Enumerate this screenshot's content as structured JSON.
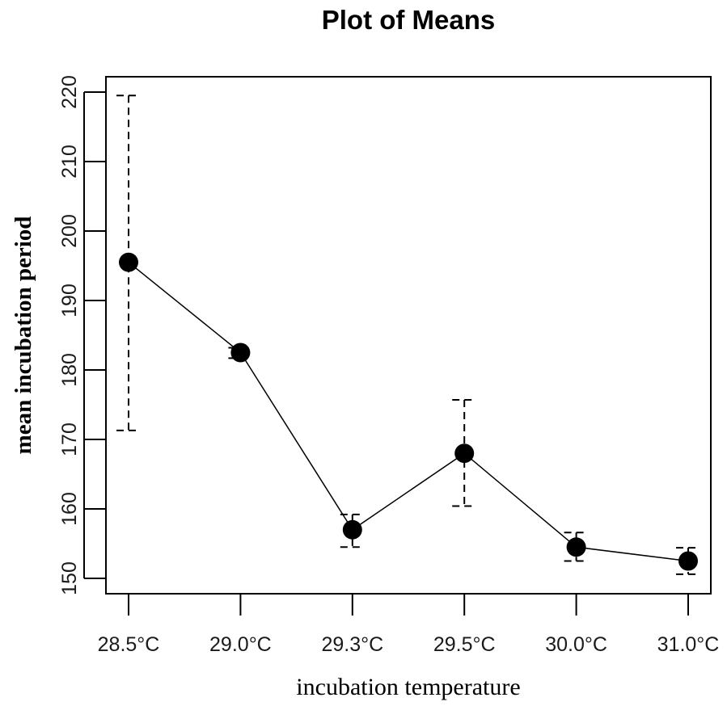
{
  "chart_data": {
    "type": "line",
    "title": "Plot of Means",
    "xlabel": "incubation temperature",
    "ylabel": "mean incubation period",
    "categories": [
      "28.5°C",
      "29.0°C",
      "29.3°C",
      "29.5°C",
      "30.0°C",
      "31.0°C"
    ],
    "means": [
      195.5,
      182.5,
      157,
      168,
      154.5,
      152.5
    ],
    "error_upper": [
      219.5,
      183.2,
      159.2,
      175.7,
      156.6,
      154.4
    ],
    "error_lower": [
      171.3,
      181.7,
      154.5,
      160.4,
      152.5,
      150.6
    ],
    "y_ticks": [
      150,
      160,
      170,
      180,
      190,
      200,
      210,
      220
    ],
    "ylim": [
      148,
      222
    ],
    "grid": false,
    "legend": "none",
    "marker": "filled-circle",
    "error_bar_style": "dashed",
    "colors": {
      "line": "#000000",
      "marker": "#000000",
      "error_bar": "#000000",
      "frame": "#000000",
      "background": "#ffffff"
    }
  }
}
